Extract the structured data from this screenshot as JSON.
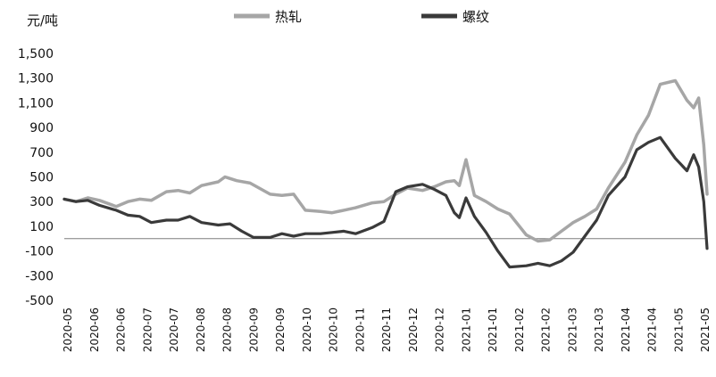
{
  "chart_data": {
    "type": "line",
    "ylabel": "元/吨",
    "ylim": [
      -500,
      1500
    ],
    "yticks": [
      1500,
      1300,
      1100,
      900,
      700,
      500,
      300,
      100,
      -100,
      -300,
      -500
    ],
    "ytick_labels": [
      "1,500",
      "1,300",
      "1,100",
      "900",
      "700",
      "500",
      "300",
      "100",
      "-100",
      "-300",
      "-500"
    ],
    "x_tick_labels": [
      "2020-05",
      "2020-06",
      "2020-06",
      "2020-07",
      "2020-07",
      "2020-08",
      "2020-08",
      "2020-09",
      "2020-09",
      "2020-10",
      "2020-10",
      "2020-11",
      "2020-11",
      "2020-12",
      "2020-12",
      "2021-01",
      "2021-01",
      "2021-02",
      "2021-02",
      "2021-03",
      "2021-03",
      "2021-04",
      "2021-04",
      "2021-05",
      "2021-05"
    ],
    "x_range": [
      "2020-05-01",
      "2021-05-20"
    ],
    "zero_line": true,
    "grid": false,
    "legend_position": "top",
    "series": [
      {
        "name": "热轧",
        "color": "#a6a6a6",
        "x": [
          "2020-05-01",
          "2020-05-08",
          "2020-05-15",
          "2020-05-22",
          "2020-06-01",
          "2020-06-08",
          "2020-06-15",
          "2020-06-22",
          "2020-07-01",
          "2020-07-08",
          "2020-07-15",
          "2020-07-22",
          "2020-08-01",
          "2020-08-05",
          "2020-08-12",
          "2020-08-20",
          "2020-09-01",
          "2020-09-08",
          "2020-09-15",
          "2020-09-22",
          "2020-10-01",
          "2020-10-08",
          "2020-10-15",
          "2020-10-22",
          "2020-11-01",
          "2020-11-08",
          "2020-11-15",
          "2020-11-22",
          "2020-12-01",
          "2020-12-08",
          "2020-12-15",
          "2020-12-20",
          "2020-12-23",
          "2020-12-27",
          "2021-01-01",
          "2021-01-08",
          "2021-01-15",
          "2021-01-22",
          "2021-02-01",
          "2021-02-08",
          "2021-02-15",
          "2021-02-22",
          "2021-03-01",
          "2021-03-08",
          "2021-03-15",
          "2021-03-22",
          "2021-04-01",
          "2021-04-08",
          "2021-04-15",
          "2021-04-22",
          "2021-05-01",
          "2021-05-08",
          "2021-05-12",
          "2021-05-15",
          "2021-05-18",
          "2021-05-20"
        ],
        "values": [
          320,
          300,
          330,
          310,
          260,
          300,
          320,
          310,
          380,
          390,
          370,
          430,
          460,
          500,
          470,
          450,
          360,
          350,
          360,
          230,
          220,
          210,
          230,
          250,
          290,
          300,
          360,
          410,
          390,
          420,
          460,
          470,
          430,
          640,
          350,
          300,
          240,
          200,
          30,
          -20,
          -10,
          60,
          130,
          180,
          240,
          410,
          620,
          840,
          1000,
          1250,
          1280,
          1120,
          1060,
          1140,
          760,
          360
        ]
      },
      {
        "name": "螺纹",
        "color": "#3a3a3a",
        "x": [
          "2020-05-01",
          "2020-05-08",
          "2020-05-15",
          "2020-05-22",
          "2020-06-01",
          "2020-06-08",
          "2020-06-15",
          "2020-06-22",
          "2020-07-01",
          "2020-07-08",
          "2020-07-15",
          "2020-07-22",
          "2020-08-01",
          "2020-08-08",
          "2020-08-15",
          "2020-08-22",
          "2020-09-01",
          "2020-09-08",
          "2020-09-15",
          "2020-09-22",
          "2020-10-01",
          "2020-10-08",
          "2020-10-15",
          "2020-10-22",
          "2020-11-01",
          "2020-11-08",
          "2020-11-15",
          "2020-11-22",
          "2020-12-01",
          "2020-12-08",
          "2020-12-15",
          "2020-12-20",
          "2020-12-23",
          "2020-12-27",
          "2021-01-01",
          "2021-01-08",
          "2021-01-15",
          "2021-01-22",
          "2021-02-01",
          "2021-02-08",
          "2021-02-15",
          "2021-02-22",
          "2021-03-01",
          "2021-03-08",
          "2021-03-15",
          "2021-03-22",
          "2021-04-01",
          "2021-04-08",
          "2021-04-15",
          "2021-04-22",
          "2021-05-01",
          "2021-05-08",
          "2021-05-12",
          "2021-05-15",
          "2021-05-18",
          "2021-05-20"
        ],
        "values": [
          320,
          300,
          310,
          270,
          230,
          190,
          180,
          130,
          150,
          150,
          180,
          130,
          110,
          120,
          60,
          10,
          10,
          40,
          20,
          40,
          40,
          50,
          60,
          40,
          90,
          140,
          380,
          420,
          440,
          400,
          350,
          210,
          170,
          330,
          180,
          50,
          -100,
          -230,
          -220,
          -200,
          -220,
          -180,
          -110,
          20,
          150,
          350,
          500,
          720,
          780,
          820,
          650,
          550,
          680,
          580,
          300,
          -80
        ]
      }
    ]
  }
}
